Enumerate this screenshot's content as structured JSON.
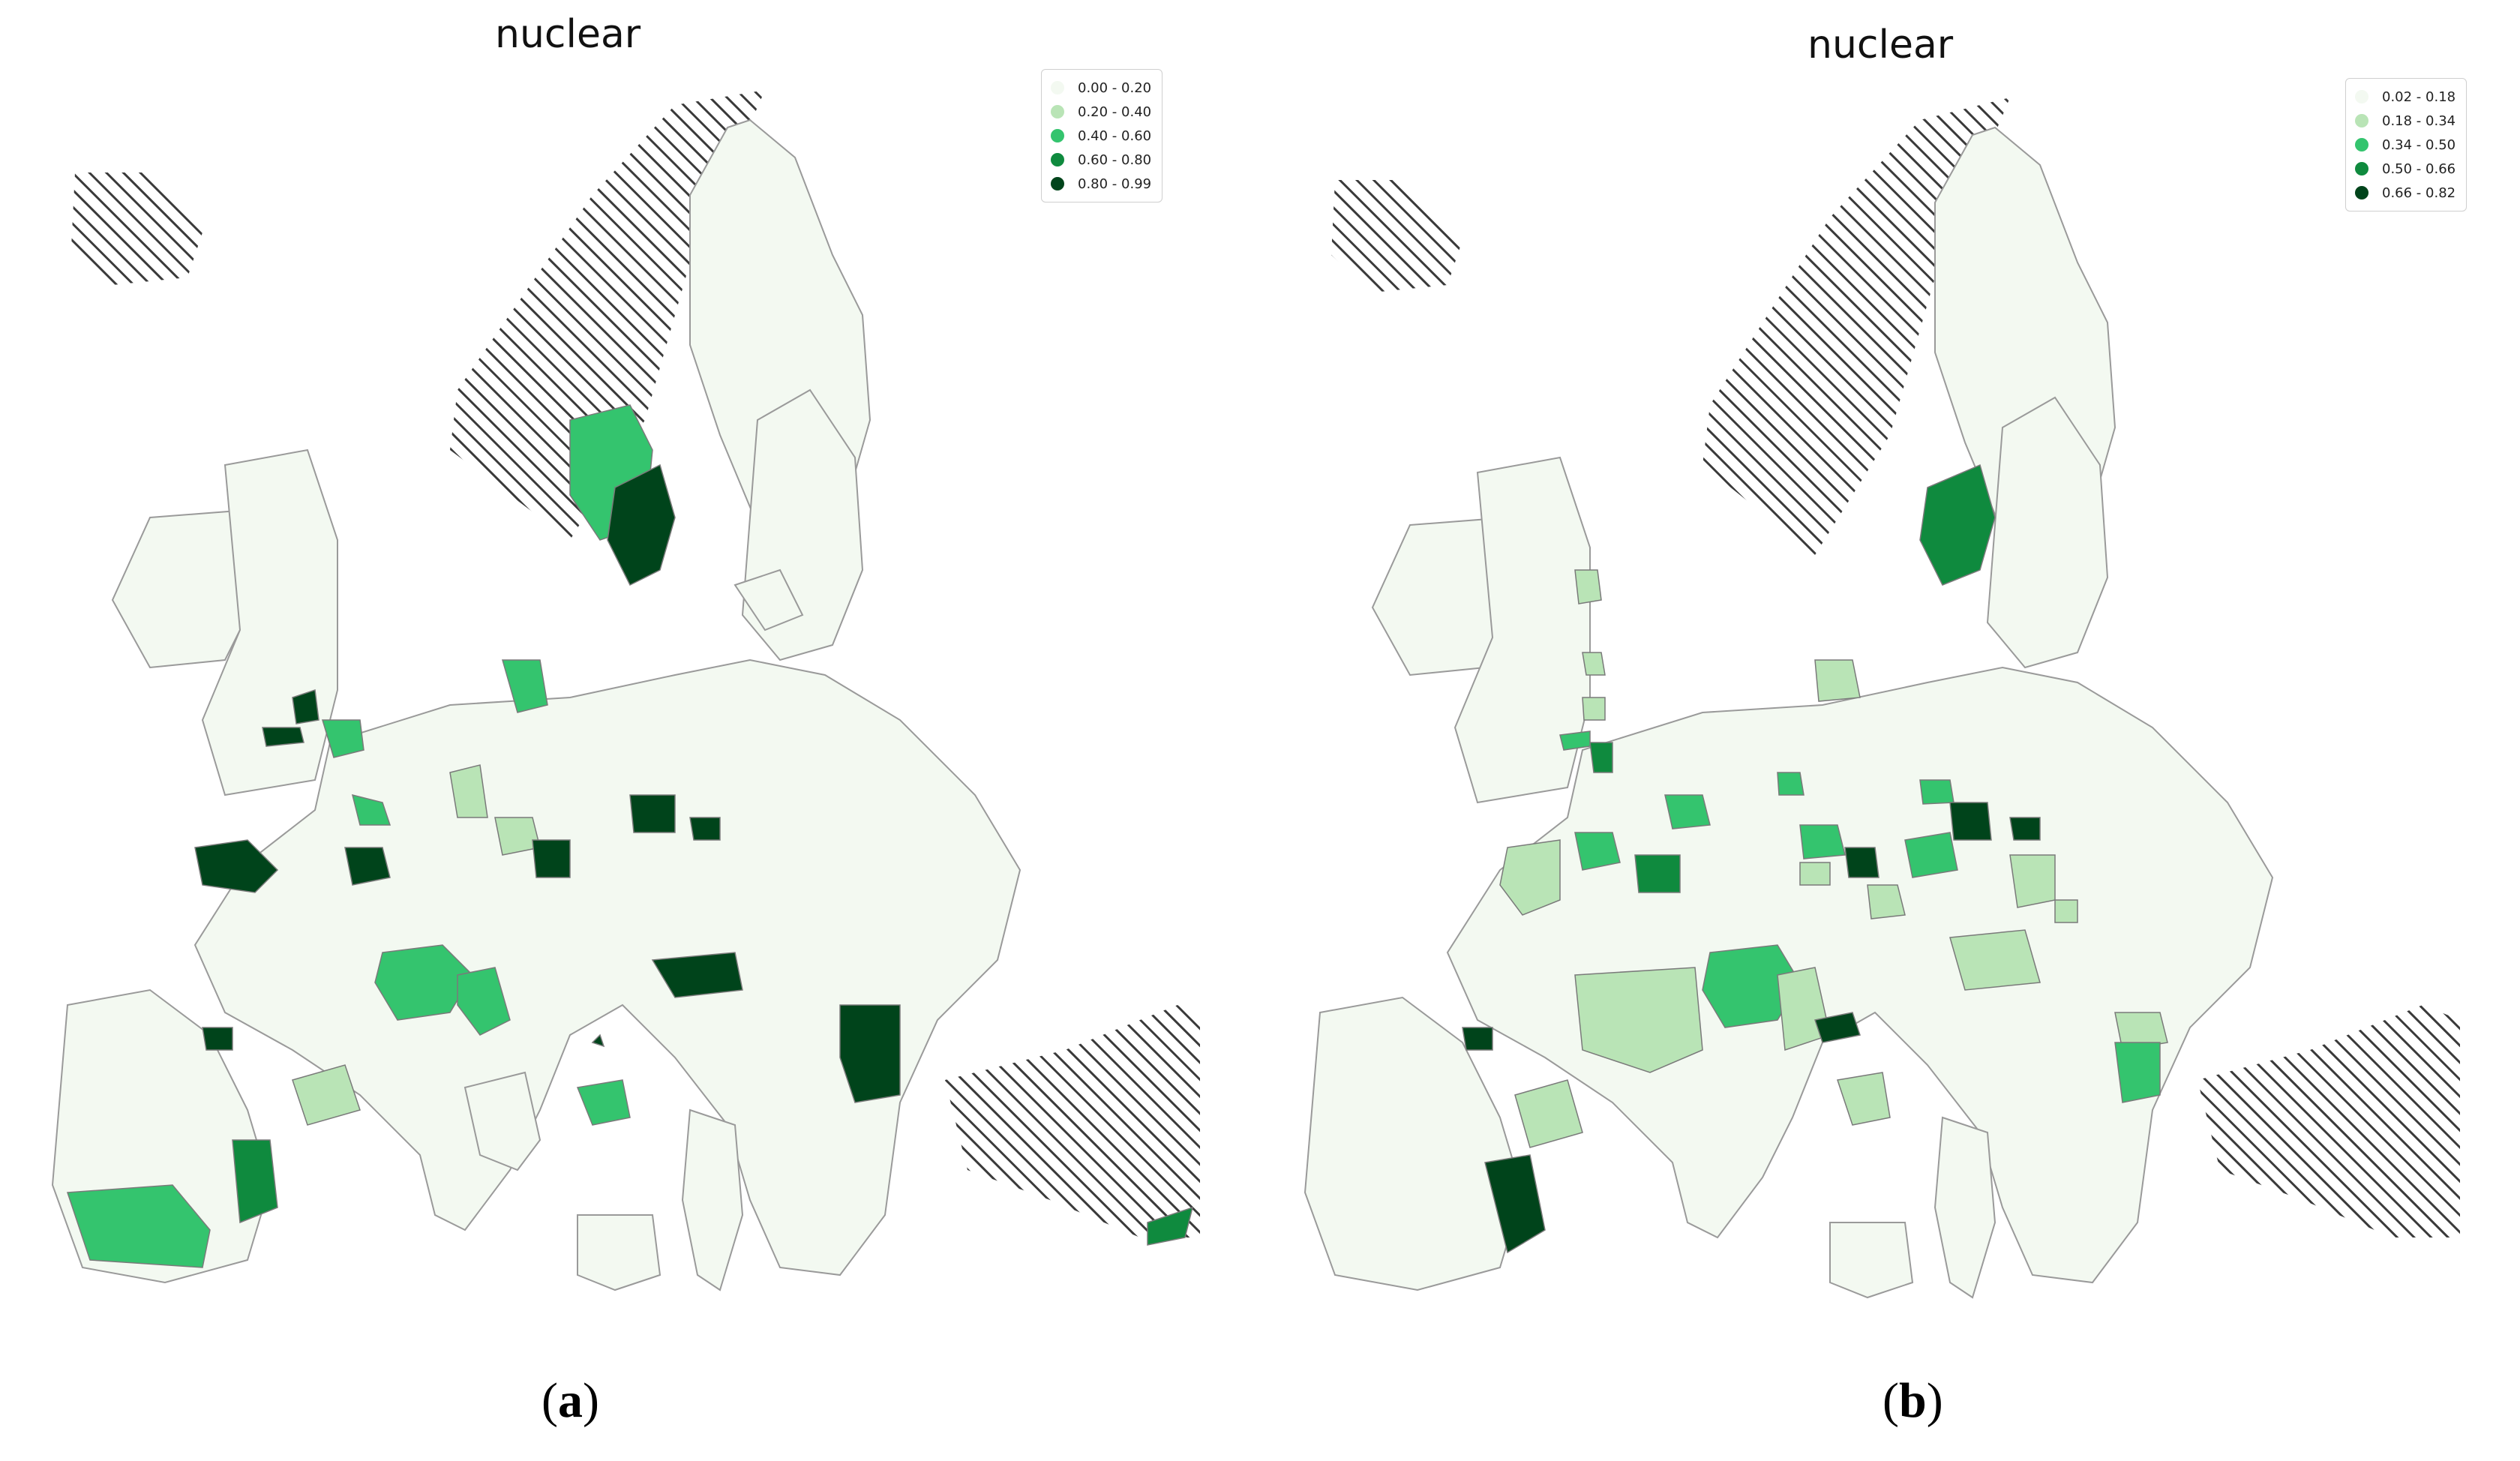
{
  "panels": [
    {
      "id": "a",
      "title": "nuclear",
      "label_open": "(",
      "label_letter": "a",
      "label_close": ")",
      "legend": [
        {
          "range": "0.00 - 0.20",
          "color": "#f3f9f1"
        },
        {
          "range": "0.20 - 0.40",
          "color": "#b9e4b6"
        },
        {
          "range": "0.40 - 0.60",
          "color": "#34c46e"
        },
        {
          "range": "0.60 - 0.80",
          "color": "#0f8a3e"
        },
        {
          "range": "0.80 - 0.99",
          "color": "#00441b"
        }
      ]
    },
    {
      "id": "b",
      "title": "nuclear",
      "label_open": "(",
      "label_letter": "b",
      "label_close": ")",
      "legend": [
        {
          "range": "0.02 - 0.18",
          "color": "#f3f9f1"
        },
        {
          "range": "0.18 - 0.34",
          "color": "#b9e4b6"
        },
        {
          "range": "0.34 - 0.50",
          "color": "#34c46e"
        },
        {
          "range": "0.50 - 0.66",
          "color": "#0f8a3e"
        },
        {
          "range": "0.66 - 0.82",
          "color": "#00441b"
        }
      ]
    }
  ],
  "map_style": {
    "land_fill": "#f3f9f1",
    "border_color": "#9a9a9a",
    "hatch_color": "#3a3a3a"
  }
}
